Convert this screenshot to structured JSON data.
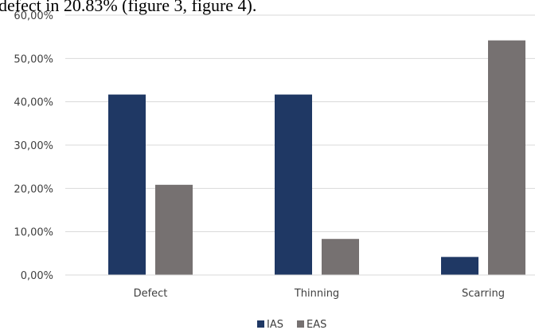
{
  "caption_fragment": "defect in 20.83% (figure 3, figure 4).",
  "chart_data": {
    "type": "bar",
    "categories": [
      "Defect",
      "Thinning",
      "Scarring"
    ],
    "series": [
      {
        "name": "IAS",
        "values": [
          41.67,
          41.67,
          4.17
        ],
        "color": "#1f3864"
      },
      {
        "name": "EAS",
        "values": [
          20.83,
          8.33,
          54.17
        ],
        "color": "#767171"
      }
    ],
    "ylim": [
      0,
      60
    ],
    "yticks": [
      0,
      10,
      20,
      30,
      40,
      50,
      60
    ],
    "ytick_labels": [
      "0,00%",
      "10,00%",
      "20,00%",
      "30,00%",
      "40,00%",
      "50,00%",
      "60,00%"
    ],
    "grid": true,
    "legend_position": "bottom-center",
    "title": "",
    "xlabel": "",
    "ylabel": ""
  }
}
